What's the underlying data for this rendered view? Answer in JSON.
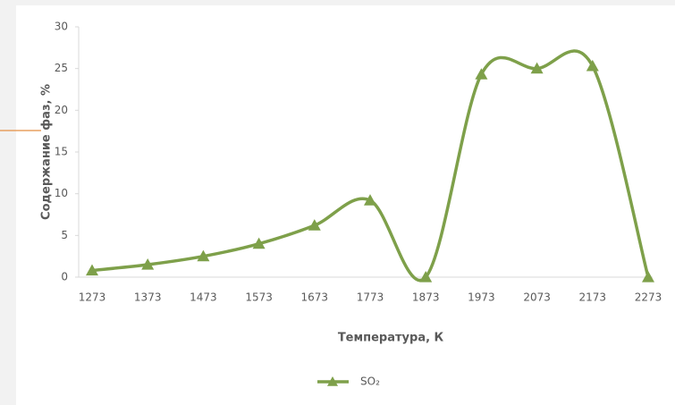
{
  "chart_data": {
    "type": "line",
    "x_label": "Температура, К",
    "y_label": "Содержание фаз, %",
    "categories": [
      "1273",
      "1373",
      "1473",
      "1573",
      "1673",
      "1773",
      "1873",
      "1973",
      "2073",
      "2173",
      "2273"
    ],
    "series": [
      {
        "name": "SO₂",
        "color": "#7ea04a",
        "values": [
          0.8,
          1.5,
          2.5,
          4,
          6.2,
          9.2,
          0,
          24.3,
          25,
          25.3,
          0
        ]
      }
    ],
    "ylim": [
      0,
      30
    ],
    "yticks": [
      0,
      5,
      10,
      15,
      20,
      25,
      30
    ],
    "smooth": true,
    "legend": "bottom"
  }
}
